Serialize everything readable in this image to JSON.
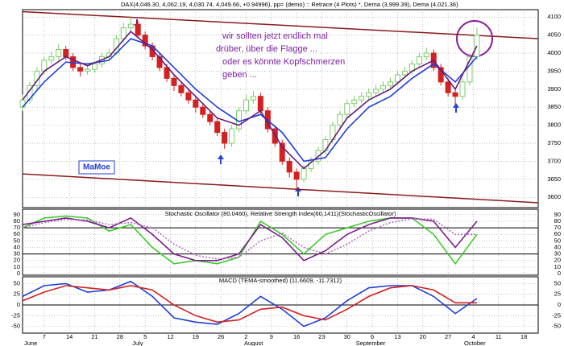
{
  "chart_data": [
    {
      "type": "candlestick",
      "title": "DAX(4,046.30, 4,062.19, 4,030.74, 4,049.66, +0.94996), pp= (demo) :: Retrace (4 Plots) *, Dema (3,999.39), Dema (4,021.36)",
      "annotations": [
        "wir sollten jetzt endlich mal",
        "drüber, über die Flagge ...",
        "oder es könnte Kopfschmerzen",
        "geben ..."
      ],
      "label_box": "MaMoe",
      "xlim": [
        0,
        143
      ],
      "ylim": [
        3576,
        4116
      ],
      "yticks": [
        3600,
        3650,
        3700,
        3750,
        3800,
        3850,
        3900,
        3950,
        4000,
        4050,
        4100
      ],
      "grid": true,
      "up_color": "#7ccd6a",
      "down_color": "#d32020",
      "x": [
        0,
        2,
        4,
        6,
        8,
        10,
        12,
        14,
        16,
        18,
        20,
        22,
        24,
        26,
        28,
        30,
        32,
        34,
        36,
        38,
        40,
        42,
        44,
        46,
        48,
        50,
        52,
        54,
        56,
        58,
        60,
        62,
        64,
        66,
        68,
        70,
        72,
        74,
        76,
        78,
        80,
        82,
        84,
        86,
        88,
        90,
        92,
        94,
        96,
        98,
        100,
        102,
        104,
        106,
        108,
        110,
        112,
        114,
        116,
        118,
        120,
        122,
        124,
        126
      ],
      "open": [
        3850,
        3870,
        3910,
        3950,
        3980,
        3990,
        4010,
        3990,
        3960,
        3950,
        3955,
        3970,
        3990,
        4000,
        4040,
        4070,
        4080,
        4050,
        4020,
        3990,
        3960,
        3930,
        3910,
        3890,
        3870,
        3850,
        3830,
        3810,
        3780,
        3750,
        3790,
        3840,
        3870,
        3880,
        3840,
        3790,
        3750,
        3700,
        3670,
        3650,
        3680,
        3700,
        3730,
        3760,
        3800,
        3830,
        3860,
        3870,
        3880,
        3890,
        3900,
        3910,
        3920,
        3940,
        3950,
        3970,
        3990,
        4000,
        3960,
        3920,
        3890,
        3880,
        3920,
        3990
      ],
      "high": [
        3885,
        3920,
        3960,
        3990,
        4005,
        4025,
        4020,
        4000,
        3970,
        3968,
        3980,
        4000,
        4012,
        4050,
        4085,
        4100,
        4090,
        4060,
        4030,
        4000,
        3970,
        3940,
        3920,
        3900,
        3880,
        3860,
        3840,
        3820,
        3790,
        3800,
        3850,
        3885,
        3895,
        3890,
        3850,
        3800,
        3760,
        3710,
        3680,
        3690,
        3712,
        3740,
        3770,
        3810,
        3840,
        3870,
        3882,
        3892,
        3902,
        3912,
        3922,
        3932,
        3950,
        3962,
        3980,
        4000,
        4015,
        4010,
        3970,
        3930,
        3900,
        3930,
        4000,
        4070
      ],
      "low": [
        3840,
        3860,
        3900,
        3940,
        3970,
        3980,
        3980,
        3950,
        3935,
        3940,
        3945,
        3960,
        3980,
        3995,
        4030,
        4060,
        4040,
        4010,
        3980,
        3950,
        3920,
        3895,
        3880,
        3860,
        3835,
        3820,
        3800,
        3770,
        3735,
        3740,
        3780,
        3830,
        3860,
        3830,
        3780,
        3740,
        3690,
        3655,
        3625,
        3640,
        3670,
        3690,
        3720,
        3750,
        3790,
        3820,
        3850,
        3860,
        3870,
        3880,
        3890,
        3900,
        3910,
        3930,
        3940,
        3960,
        3980,
        3950,
        3910,
        3880,
        3855,
        3870,
        3910,
        3980
      ],
      "close": [
        3870,
        3910,
        3950,
        3980,
        3990,
        4010,
        3990,
        3960,
        3950,
        3955,
        3970,
        3990,
        4000,
        4040,
        4070,
        4080,
        4050,
        4020,
        3990,
        3960,
        3930,
        3910,
        3890,
        3870,
        3850,
        3830,
        3810,
        3780,
        3750,
        3790,
        3840,
        3870,
        3880,
        3840,
        3790,
        3750,
        3700,
        3670,
        3650,
        3680,
        3700,
        3730,
        3760,
        3800,
        3830,
        3860,
        3870,
        3880,
        3890,
        3900,
        3910,
        3920,
        3940,
        3950,
        3970,
        3990,
        4000,
        3960,
        3920,
        3890,
        3880,
        3920,
        3990,
        4050
      ],
      "series": [
        {
          "color": "#1f3fd6",
          "x": [
            0,
            6,
            12,
            18,
            24,
            30,
            36,
            42,
            48,
            54,
            60,
            66,
            72,
            78,
            84,
            90,
            96,
            102,
            108,
            114,
            120,
            126
          ],
          "values": [
            3850,
            3920,
            3975,
            3970,
            3980,
            4040,
            4020,
            3960,
            3900,
            3850,
            3810,
            3830,
            3780,
            3700,
            3710,
            3790,
            3850,
            3880,
            3930,
            3970,
            3920,
            3990
          ]
        },
        {
          "color": "#6a1b7a",
          "x": [
            0,
            6,
            12,
            18,
            24,
            30,
            36,
            42,
            48,
            54,
            60,
            66,
            72,
            78,
            84,
            90,
            96,
            102,
            108,
            114,
            120,
            126
          ],
          "values": [
            3870,
            3950,
            3990,
            3965,
            3990,
            4060,
            4010,
            3940,
            3880,
            3820,
            3800,
            3840,
            3740,
            3680,
            3730,
            3820,
            3870,
            3900,
            3950,
            3980,
            3900,
            4020
          ]
        }
      ],
      "trendlines": [
        {
          "color": "#8b1a1a",
          "x": [
            0,
            143
          ],
          "values": [
            4115,
            4040
          ]
        },
        {
          "color": "#8b1a1a",
          "x": [
            0,
            143
          ],
          "values": [
            3665,
            3585
          ]
        }
      ]
    },
    {
      "type": "line",
      "title": "Stochastic Oscillator (80.0460), Relative Strength Index(60,1411)(StochasticOscillator)",
      "xlim": [
        0,
        143
      ],
      "ylim": [
        0,
        96
      ],
      "yticks": [
        0,
        10,
        20,
        30,
        40,
        50,
        60,
        70,
        80,
        90
      ],
      "grid": true,
      "levels": [
        70,
        30
      ],
      "series": [
        {
          "color": "#3ccc2a",
          "x": [
            0,
            6,
            12,
            18,
            24,
            30,
            36,
            42,
            48,
            54,
            60,
            66,
            72,
            78,
            84,
            90,
            96,
            102,
            108,
            114,
            120,
            126
          ],
          "values": [
            70,
            85,
            88,
            85,
            65,
            75,
            40,
            15,
            20,
            15,
            25,
            80,
            60,
            30,
            60,
            70,
            80,
            85,
            85,
            60,
            15,
            60
          ]
        },
        {
          "color": "#7a1f8a",
          "x": [
            0,
            6,
            12,
            18,
            24,
            30,
            36,
            42,
            48,
            54,
            60,
            66,
            72,
            78,
            84,
            90,
            96,
            102,
            108,
            114,
            120,
            126
          ],
          "values": [
            75,
            80,
            85,
            80,
            70,
            85,
            60,
            30,
            20,
            20,
            30,
            75,
            55,
            20,
            35,
            60,
            75,
            85,
            85,
            80,
            40,
            80
          ]
        },
        {
          "color": "#b070c0",
          "dashed": true,
          "x": [
            0,
            6,
            12,
            18,
            24,
            30,
            36,
            42,
            48,
            54,
            60,
            66,
            72,
            78,
            84,
            90,
            96,
            102,
            108,
            114,
            120,
            126
          ],
          "values": [
            70,
            78,
            83,
            82,
            75,
            78,
            70,
            45,
            28,
            22,
            25,
            50,
            62,
            40,
            30,
            45,
            65,
            78,
            84,
            83,
            60,
            60
          ]
        }
      ]
    },
    {
      "type": "line",
      "title": "MACD (TEMA-smoothed) (11.6609, -11.7312)",
      "xlim": [
        0,
        143
      ],
      "ylim": [
        -62,
        62
      ],
      "yticks": [
        -50,
        -25,
        0,
        25,
        50
      ],
      "grid": true,
      "levels": [
        0
      ],
      "xticks": [
        {
          "value": 6,
          "label": "7"
        },
        {
          "value": 13,
          "label": "14"
        },
        {
          "value": 20,
          "label": "21"
        },
        {
          "value": 27,
          "label": "28"
        },
        {
          "value": 34,
          "label": "5"
        },
        {
          "value": 41,
          "label": "12"
        },
        {
          "value": 48,
          "label": "19"
        },
        {
          "value": 55,
          "label": "26"
        },
        {
          "value": 62,
          "label": "2"
        },
        {
          "value": 69,
          "label": "9"
        },
        {
          "value": 76,
          "label": "16"
        },
        {
          "value": 83,
          "label": "23"
        },
        {
          "value": 90,
          "label": "30"
        },
        {
          "value": 97,
          "label": "6"
        },
        {
          "value": 104,
          "label": "13"
        },
        {
          "value": 111,
          "label": "20"
        },
        {
          "value": 118,
          "label": "27"
        },
        {
          "value": 125,
          "label": "4"
        },
        {
          "value": 132,
          "label": "11"
        },
        {
          "value": 139,
          "label": "18"
        }
      ],
      "month_labels": [
        {
          "value": 0,
          "label": "June"
        },
        {
          "value": 30,
          "label": "July"
        },
        {
          "value": 61,
          "label": "August"
        },
        {
          "value": 92,
          "label": "September"
        },
        {
          "value": 122,
          "label": "October"
        }
      ],
      "series": [
        {
          "color": "#1f3fd6",
          "x": [
            0,
            6,
            12,
            18,
            24,
            30,
            36,
            42,
            48,
            54,
            60,
            66,
            72,
            78,
            84,
            90,
            96,
            102,
            108,
            114,
            120,
            126
          ],
          "values": [
            20,
            45,
            50,
            30,
            35,
            55,
            20,
            -30,
            -40,
            -45,
            -20,
            20,
            -10,
            -50,
            -30,
            10,
            40,
            45,
            45,
            20,
            -20,
            15
          ]
        },
        {
          "color": "#d32020",
          "x": [
            0,
            6,
            12,
            18,
            24,
            30,
            36,
            42,
            48,
            54,
            60,
            66,
            72,
            78,
            84,
            90,
            96,
            102,
            108,
            114,
            120,
            126
          ],
          "values": [
            10,
            30,
            45,
            40,
            35,
            45,
            35,
            0,
            -25,
            -40,
            -35,
            -10,
            -5,
            -25,
            -35,
            -10,
            20,
            40,
            45,
            35,
            5,
            5
          ]
        }
      ]
    }
  ]
}
